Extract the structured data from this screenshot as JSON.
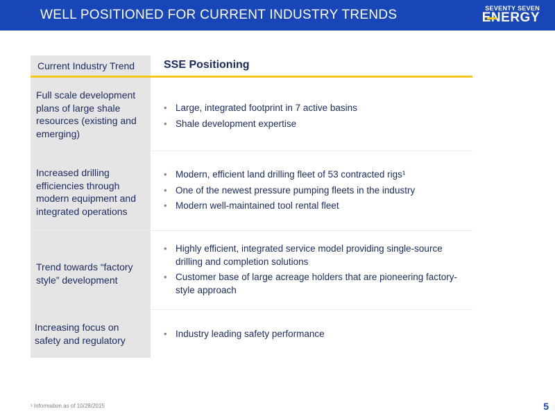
{
  "header": {
    "title": "WELL POSITIONED FOR CURRENT INDUSTRY TRENDS",
    "logo_top": "SEVENTY SEVEN",
    "logo_bottom": "ENERGY"
  },
  "table": {
    "col_left_header": "Current Industry Trend",
    "col_right_header": "SSE Positioning",
    "rows": [
      {
        "trend": "Full scale development plans of large shale resources (existing and emerging)",
        "bullets": [
          "Large, integrated footprint in 7 active basins",
          "Shale development expertise"
        ]
      },
      {
        "trend": "Increased drilling efficiencies through modern equipment and integrated operations",
        "bullets": [
          "Modern, efficient land drilling fleet of 53 contracted rigs¹",
          "One of the newest pressure pumping fleets in the industry",
          "Modern well-maintained tool rental fleet"
        ]
      },
      {
        "trend": "Trend towards “factory style” development",
        "bullets": [
          "Highly efficient, integrated service model providing single-source drilling and completion solutions",
          "Customer base of large acreage holders that are pioneering factory-style approach"
        ]
      },
      {
        "trend": "Increasing focus on safety and regulatory",
        "bullets": [
          "Industry leading safety performance"
        ]
      }
    ]
  },
  "bullet_glyph": "•",
  "footnote": "¹ Information as of 10/28/2015",
  "page_number": "5",
  "colors": {
    "header_bg": "#1846b8",
    "accent_gold": "#f5c518",
    "text_navy": "#1a2a5e",
    "trend_bg": "#e5e5e5"
  }
}
